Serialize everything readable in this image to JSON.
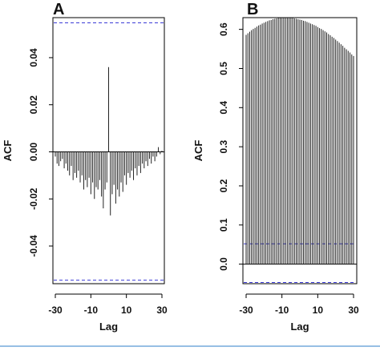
{
  "chart_data": [
    {
      "type": "bar",
      "panel_label": "A",
      "xlabel": "Lag",
      "ylabel": "ACF",
      "xlim": [
        -30,
        30
      ],
      "ylim": [
        -0.056,
        0.057
      ],
      "x_ticks": [
        -30,
        -10,
        10,
        30
      ],
      "x_tick_labels": [
        "-30",
        "-10",
        "10",
        "30"
      ],
      "y_ticks": [
        -0.04,
        -0.02,
        0.0,
        0.02,
        0.04
      ],
      "y_tick_labels": [
        "-0.04",
        "-0.02",
        "0.00",
        "0.02",
        "0.04"
      ],
      "confidence_band": [
        -0.0545,
        0.0548
      ],
      "confidence_color": "#3b3bd6",
      "lags": [
        -30,
        -29,
        -28,
        -27,
        -26,
        -25,
        -24,
        -23,
        -22,
        -21,
        -20,
        -19,
        -18,
        -17,
        -16,
        -15,
        -14,
        -13,
        -12,
        -11,
        -10,
        -9,
        -8,
        -7,
        -6,
        -5,
        -4,
        -3,
        -2,
        -1,
        0,
        1,
        2,
        3,
        4,
        5,
        6,
        7,
        8,
        9,
        10,
        11,
        12,
        13,
        14,
        15,
        16,
        17,
        18,
        19,
        20,
        21,
        22,
        23,
        24,
        25,
        26,
        27,
        28,
        29,
        30
      ],
      "values": [
        -0.002,
        -0.005,
        -0.006,
        -0.004,
        -0.003,
        -0.007,
        -0.005,
        -0.008,
        -0.01,
        -0.006,
        -0.012,
        -0.009,
        -0.011,
        -0.008,
        -0.013,
        -0.01,
        -0.016,
        -0.012,
        -0.015,
        -0.011,
        -0.018,
        -0.013,
        -0.02,
        -0.015,
        -0.016,
        -0.012,
        -0.019,
        -0.024,
        -0.016,
        -0.013,
        0.036,
        -0.027,
        -0.018,
        -0.014,
        -0.022,
        -0.016,
        -0.019,
        -0.013,
        -0.017,
        -0.01,
        -0.014,
        -0.009,
        -0.011,
        -0.008,
        -0.012,
        -0.007,
        -0.01,
        -0.006,
        -0.009,
        -0.005,
        -0.007,
        -0.004,
        -0.006,
        -0.003,
        -0.005,
        -0.002,
        -0.004,
        -0.002,
        0.002,
        -0.001,
        0.0005
      ]
    },
    {
      "type": "bar",
      "panel_label": "B",
      "xlabel": "Lag",
      "ylabel": "ACF",
      "xlim": [
        -30,
        30
      ],
      "ylim": [
        -0.05,
        0.63
      ],
      "x_ticks": [
        -30,
        -10,
        10,
        30
      ],
      "x_tick_labels": [
        "-30",
        "-10",
        "10",
        "30"
      ],
      "y_ticks": [
        0.0,
        0.1,
        0.2,
        0.3,
        0.4,
        0.5,
        0.6
      ],
      "y_tick_labels": [
        "0.0",
        "0.1",
        "0.2",
        "0.3",
        "0.4",
        "0.5",
        "0.6"
      ],
      "confidence_band": [
        -0.047,
        0.052
      ],
      "confidence_color": "#3b3bd6",
      "lags": [
        -30,
        -29,
        -28,
        -27,
        -26,
        -25,
        -24,
        -23,
        -22,
        -21,
        -20,
        -19,
        -18,
        -17,
        -16,
        -15,
        -14,
        -13,
        -12,
        -11,
        -10,
        -9,
        -8,
        -7,
        -6,
        -5,
        -4,
        -3,
        -2,
        -1,
        0,
        1,
        2,
        3,
        4,
        5,
        6,
        7,
        8,
        9,
        10,
        11,
        12,
        13,
        14,
        15,
        16,
        17,
        18,
        19,
        20,
        21,
        22,
        23,
        24,
        25,
        26,
        27,
        28,
        29,
        30
      ],
      "values": [
        0.586,
        0.59,
        0.594,
        0.598,
        0.601,
        0.604,
        0.607,
        0.61,
        0.612,
        0.615,
        0.617,
        0.619,
        0.621,
        0.623,
        0.624,
        0.626,
        0.627,
        0.628,
        0.629,
        0.629,
        0.63,
        0.63,
        0.63,
        0.63,
        0.63,
        0.629,
        0.629,
        0.628,
        0.627,
        0.626,
        0.625,
        0.624,
        0.622,
        0.621,
        0.619,
        0.617,
        0.615,
        0.613,
        0.611,
        0.609,
        0.606,
        0.603,
        0.601,
        0.598,
        0.595,
        0.592,
        0.588,
        0.585,
        0.581,
        0.578,
        0.574,
        0.57,
        0.566,
        0.562,
        0.558,
        0.553,
        0.549,
        0.545,
        0.541,
        0.536,
        0.532
      ]
    }
  ]
}
